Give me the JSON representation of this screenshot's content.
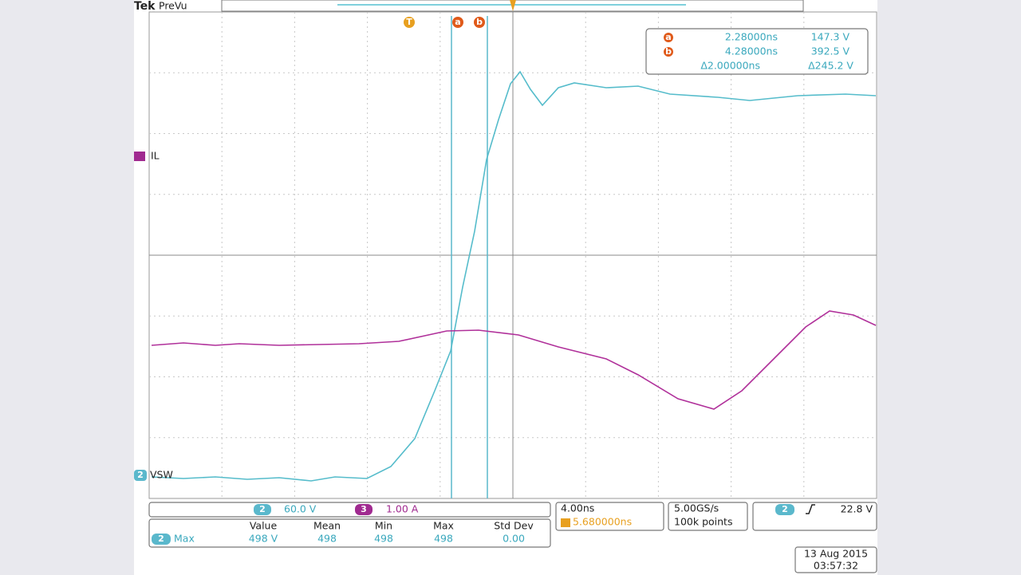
{
  "header": {
    "brand": "Tek",
    "mode": "PreVu"
  },
  "markers": {
    "trigger": "T",
    "cursor_a": "a",
    "cursor_b": "b"
  },
  "channels": {
    "il": "IL",
    "vsw_badge": "2",
    "vsw": "VSW"
  },
  "cursor_readout": {
    "a": {
      "marker": "a",
      "time": "2.28000ns",
      "value": "147.3 V"
    },
    "b": {
      "marker": "b",
      "time": "4.28000ns",
      "value": "392.5 V"
    },
    "delta": {
      "time": "Δ2.00000ns",
      "value": "Δ245.2 V"
    }
  },
  "scales": {
    "ch2": {
      "badge": "2",
      "scale": "60.0 V"
    },
    "ch3": {
      "badge": "3",
      "scale": "1.00 A"
    }
  },
  "measurements": {
    "headers": [
      "Value",
      "Mean",
      "Min",
      "Max",
      "Std Dev"
    ],
    "row": {
      "badge": "2",
      "label": "Max",
      "cells": [
        "498 V",
        "498",
        "498",
        "498",
        "0.00"
      ]
    }
  },
  "timebase": {
    "scale": "4.00ns",
    "position": "5.680000ns",
    "sample_rate": "5.00GS/s",
    "record": "100k points"
  },
  "trigger": {
    "badge": "2",
    "level": "22.8 V"
  },
  "timestamp": {
    "date": "13 Aug 2015",
    "time": "03:57:32"
  }
}
